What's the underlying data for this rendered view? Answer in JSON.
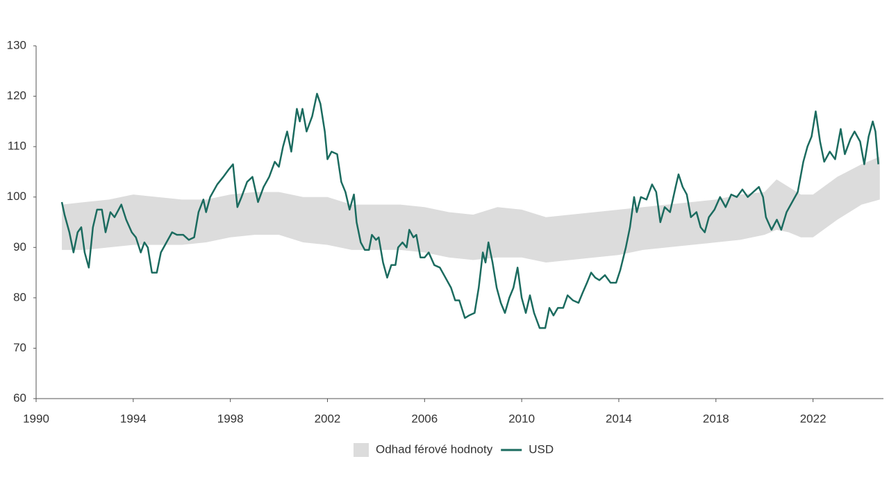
{
  "chart_data": {
    "type": "line",
    "xlim": [
      1990,
      2024.9
    ],
    "xticks": [
      1990,
      1994,
      1998,
      2002,
      2006,
      2010,
      2014,
      2018,
      2022
    ],
    "ylim": [
      60,
      130
    ],
    "yticks": [
      60,
      70,
      80,
      90,
      100,
      110,
      120,
      130
    ],
    "series": [
      {
        "name": "Odhad férové hodnoty",
        "color": "#dcdcdc",
        "x": [
          1991.06,
          1992,
          1993,
          1994,
          1995,
          1996,
          1997,
          1998,
          1999,
          2000,
          2001,
          2002,
          2003,
          2004,
          2005,
          2006,
          2007,
          2008,
          2009,
          2010,
          2011,
          2012,
          2013,
          2014,
          2015,
          2016,
          2017,
          2018,
          2019,
          2020,
          2020.5,
          2021,
          2021.5,
          2022,
          2023,
          2024,
          2024.75
        ],
        "upper": [
          98.5,
          99,
          99.5,
          100.5,
          100,
          99.5,
          99.5,
          100.5,
          101,
          101,
          100,
          100,
          98.5,
          98.5,
          98.5,
          98,
          97,
          96.5,
          98,
          97.5,
          96,
          96.5,
          97,
          97.5,
          98,
          98.5,
          99,
          99.5,
          100.5,
          101,
          103.5,
          102,
          100.5,
          100.5,
          104,
          106.5,
          108
        ],
        "lower": [
          89.5,
          89.5,
          90,
          90.5,
          90.5,
          90.5,
          91,
          92,
          92.5,
          92.5,
          91,
          90.5,
          89.5,
          89.5,
          89.5,
          89,
          88,
          87.5,
          88,
          88,
          87,
          87.5,
          88,
          88.5,
          89.5,
          90,
          90.5,
          91,
          91.5,
          92.5,
          93.5,
          93,
          92,
          92,
          95.5,
          98.5,
          99.5
        ]
      },
      {
        "name": "USD",
        "color": "#1b6b5f",
        "x": [
          1991.06,
          1991.17,
          1991.37,
          1991.54,
          1991.71,
          1991.86,
          1992.0,
          1992.17,
          1992.34,
          1992.51,
          1992.71,
          1992.86,
          1993.06,
          1993.23,
          1993.51,
          1993.71,
          1993.94,
          1994.11,
          1994.31,
          1994.46,
          1994.6,
          1994.77,
          1994.97,
          1995.14,
          1995.37,
          1995.6,
          1995.8,
          1996.06,
          1996.29,
          1996.51,
          1996.69,
          1996.89,
          1997.0,
          1997.17,
          1997.46,
          1997.71,
          1997.94,
          1998.11,
          1998.29,
          1998.46,
          1998.69,
          1998.91,
          1999.14,
          1999.37,
          1999.6,
          1999.83,
          2000.0,
          2000.17,
          2000.34,
          2000.51,
          2000.74,
          2000.86,
          2000.97,
          2001.14,
          2001.37,
          2001.57,
          2001.71,
          2001.89,
          2002.0,
          2002.17,
          2002.4,
          2002.57,
          2002.74,
          2002.91,
          2003.09,
          2003.2,
          2003.37,
          2003.54,
          2003.71,
          2003.83,
          2004.0,
          2004.11,
          2004.29,
          2004.46,
          2004.63,
          2004.8,
          2004.91,
          2005.09,
          2005.26,
          2005.37,
          2005.54,
          2005.66,
          2005.83,
          2006.0,
          2006.17,
          2006.4,
          2006.63,
          2006.86,
          2007.09,
          2007.26,
          2007.43,
          2007.66,
          2007.83,
          2008.06,
          2008.23,
          2008.4,
          2008.51,
          2008.63,
          2008.8,
          2008.97,
          2009.14,
          2009.31,
          2009.49,
          2009.66,
          2009.83,
          2010.0,
          2010.17,
          2010.34,
          2010.51,
          2010.74,
          2010.97,
          2011.14,
          2011.31,
          2011.49,
          2011.71,
          2011.89,
          2012.11,
          2012.34,
          2012.51,
          2012.69,
          2012.86,
          2013.03,
          2013.2,
          2013.43,
          2013.66,
          2013.89,
          2014.06,
          2014.29,
          2014.46,
          2014.63,
          2014.74,
          2014.91,
          2015.14,
          2015.37,
          2015.54,
          2015.71,
          2015.89,
          2016.11,
          2016.34,
          2016.46,
          2016.63,
          2016.8,
          2016.97,
          2017.2,
          2017.37,
          2017.54,
          2017.71,
          2017.94,
          2018.17,
          2018.4,
          2018.63,
          2018.86,
          2019.09,
          2019.31,
          2019.54,
          2019.77,
          2019.94,
          2020.06,
          2020.29,
          2020.51,
          2020.69,
          2020.91,
          2021.14,
          2021.37,
          2021.6,
          2021.77,
          2021.94,
          2022.11,
          2022.29,
          2022.46,
          2022.69,
          2022.91,
          2023.14,
          2023.31,
          2023.54,
          2023.71,
          2023.94,
          2024.11,
          2024.29,
          2024.46,
          2024.57,
          2024.69
        ],
        "values": [
          99,
          96.5,
          93,
          89,
          93,
          94,
          89,
          86,
          94,
          97.5,
          97.5,
          93,
          97,
          96,
          98.5,
          95.5,
          93,
          92,
          89,
          91,
          90,
          85,
          85,
          89,
          91,
          93,
          92.5,
          92.5,
          91.5,
          92,
          97,
          99.5,
          97,
          100,
          102.5,
          104,
          105.5,
          106.5,
          98,
          100,
          103,
          104,
          99,
          102,
          104,
          107,
          106,
          110,
          113,
          109,
          117.5,
          115,
          117.5,
          113,
          116,
          120.5,
          118.5,
          113,
          107.5,
          109,
          108.5,
          103,
          101,
          97.5,
          100.5,
          95,
          91,
          89.5,
          89.5,
          92.5,
          91.5,
          92,
          87,
          84,
          86.5,
          86.5,
          90,
          91,
          90,
          93.5,
          92,
          92.5,
          88,
          88,
          89,
          86.5,
          86,
          84,
          82,
          79.5,
          79.5,
          76,
          76.5,
          77,
          82,
          89,
          87,
          91,
          87,
          82,
          79,
          77,
          80,
          82,
          86,
          80,
          77,
          80.5,
          77,
          74,
          74,
          78,
          76.5,
          78,
          78,
          80.5,
          79.5,
          79,
          81,
          83,
          85,
          84,
          83.5,
          84.5,
          83,
          83,
          85.5,
          90,
          94,
          100,
          97,
          100,
          99.5,
          102.5,
          101,
          95,
          98,
          97,
          102,
          104.5,
          102,
          100.5,
          96,
          97,
          94,
          93,
          96,
          97.5,
          100,
          98,
          100.5,
          100,
          101.5,
          100,
          101,
          102,
          100,
          96,
          93.5,
          95.5,
          93.5,
          97,
          99,
          101,
          107,
          110,
          112,
          117,
          111,
          107,
          109,
          107.5,
          113.5,
          108.5,
          111.5,
          113,
          111,
          106.5,
          112,
          115,
          113,
          106.5
        ]
      }
    ]
  }
}
